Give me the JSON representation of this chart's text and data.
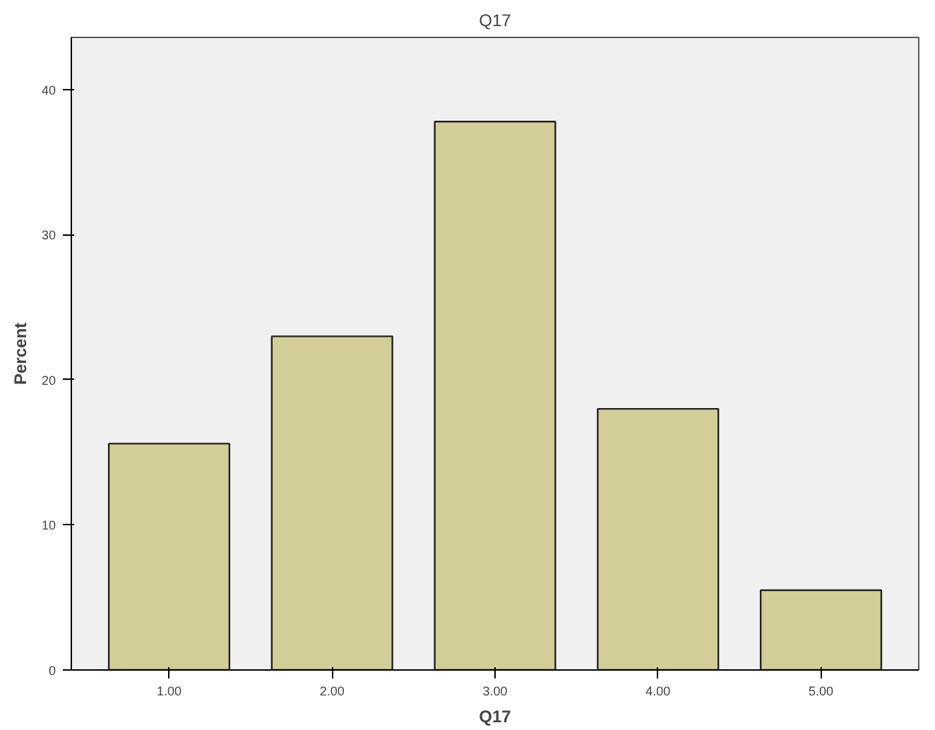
{
  "chart_data": {
    "type": "bar",
    "title": "Q17",
    "xlabel": "Q17",
    "ylabel": "Percent",
    "categories": [
      "1.00",
      "2.00",
      "3.00",
      "4.00",
      "5.00"
    ],
    "values": [
      15.6,
      23.0,
      37.8,
      18.0,
      5.5
    ],
    "color": "#d3ce98",
    "ylim": [
      0,
      43.6
    ],
    "yticks": [
      0,
      10,
      20,
      30,
      40
    ],
    "grid": false
  }
}
